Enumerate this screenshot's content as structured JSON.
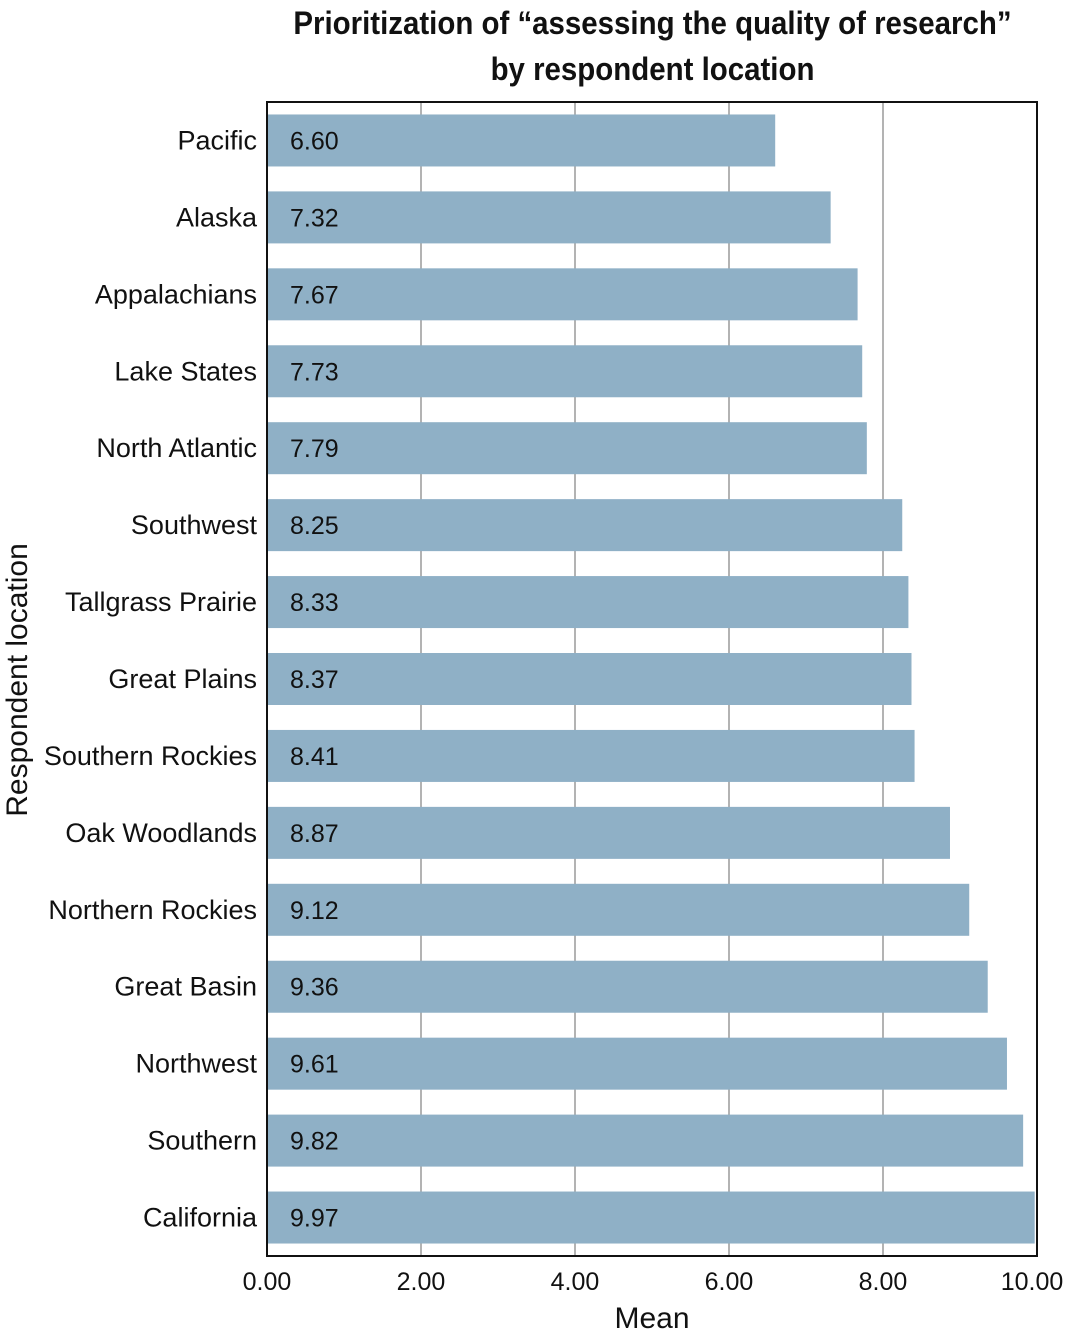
{
  "chart_data": {
    "type": "bar",
    "orientation": "horizontal",
    "title_line1": "Prioritization of “assessing the quality of research”",
    "title_line2": "by respondent location",
    "xlabel": "Mean",
    "ylabel": "Respondent location",
    "xlim": [
      0,
      10
    ],
    "xticks": [
      "0.00",
      "2.00",
      "4.00",
      "6.00",
      "8.00",
      "10.00"
    ],
    "xtick_values": [
      0,
      2,
      4,
      6,
      8,
      10
    ],
    "grid": true,
    "bar_color": "#8fb0c6",
    "categories": [
      "Pacific",
      "Alaska",
      "Appalachians",
      "Lake States",
      "North Atlantic",
      "Southwest",
      "Tallgrass Prairie",
      "Great Plains",
      "Southern Rockies",
      "Oak Woodlands",
      "Northern Rockies",
      "Great Basin",
      "Northwest",
      "Southern",
      "California"
    ],
    "values": [
      6.6,
      7.32,
      7.67,
      7.73,
      7.79,
      8.25,
      8.33,
      8.37,
      8.41,
      8.87,
      9.12,
      9.36,
      9.61,
      9.82,
      9.97
    ],
    "value_labels": [
      "6.60",
      "7.32",
      "7.67",
      "7.73",
      "7.79",
      "8.25",
      "8.33",
      "8.37",
      "8.41",
      "8.87",
      "9.12",
      "9.36",
      "9.61",
      "9.82",
      "9.97"
    ]
  }
}
